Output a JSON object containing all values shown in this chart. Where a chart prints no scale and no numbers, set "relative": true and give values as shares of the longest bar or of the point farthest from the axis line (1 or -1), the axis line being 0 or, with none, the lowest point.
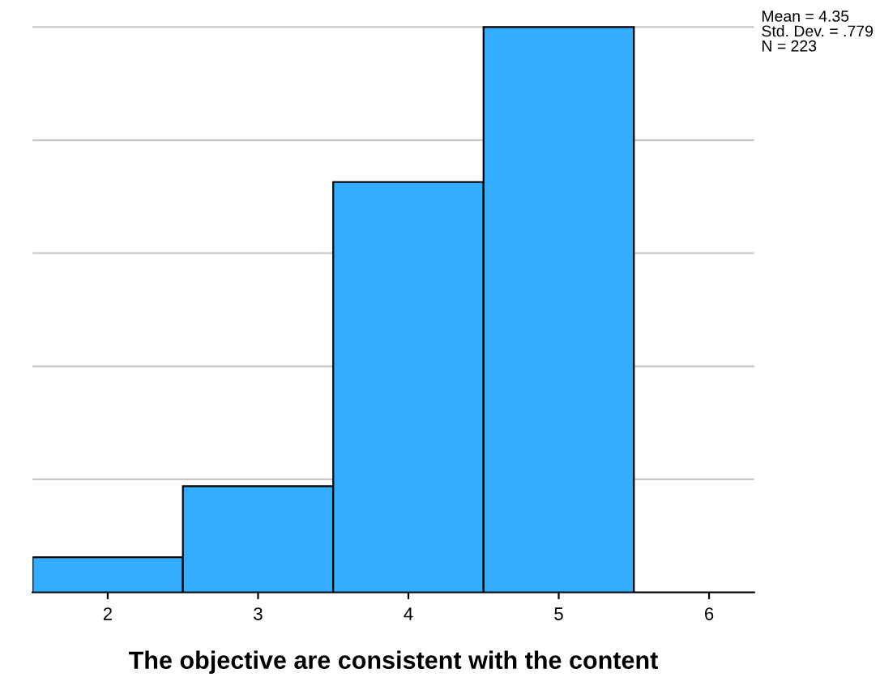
{
  "chart_data": {
    "type": "bar",
    "relative": true,
    "categories": [
      "2",
      "3",
      "4",
      "5",
      "6"
    ],
    "values": [
      0.062,
      0.188,
      0.726,
      1,
      null
    ],
    "color": "#33adff",
    "xlabel": "The objective are consistent with the content",
    "annotations": [
      "Mean = 4.35",
      "Std. Dev. = .779",
      "N = 223"
    ],
    "grid": "y"
  }
}
